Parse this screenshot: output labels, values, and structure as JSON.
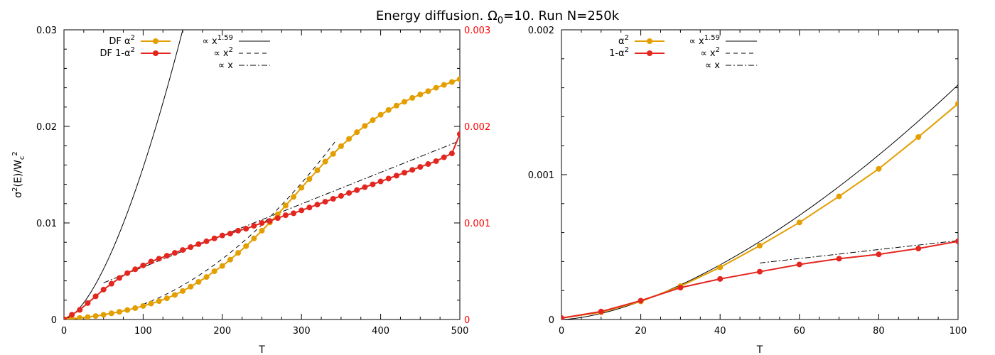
{
  "title_main": "Energy diffusion. Ω",
  "title_sub": "0",
  "title_rest": "=10. Run N=250k",
  "colors": {
    "alpha2": "#e39e00",
    "one_minus_alpha2": "#e3261f",
    "fit": "#000000",
    "right_axis": "#ff0000"
  },
  "chart_data": [
    {
      "type": "line",
      "xlabel": "T",
      "ylabel": "σ2(E)/Wc2",
      "ylabel_parts": {
        "a": "σ",
        "a_sup": "2",
        "b": "(E)/W",
        "b_sub": "c",
        "b_sup": "2"
      },
      "xlim": [
        0,
        500
      ],
      "ylim": [
        0,
        0.03
      ],
      "y2lim": [
        0,
        0.003
      ],
      "xticks": [
        "0",
        "100",
        "200",
        "300",
        "400",
        "500"
      ],
      "yticks": [
        "0",
        "0.01",
        "0.02",
        "0.03"
      ],
      "y2ticks": [
        "0",
        "0.001",
        "0.002",
        "0.003"
      ],
      "legend_position": "top-left",
      "series": [
        {
          "name": "DF α2",
          "name_parts": {
            "base": "DF α",
            "sup": "2"
          },
          "axis": "left",
          "x": [
            0,
            10,
            20,
            30,
            40,
            50,
            60,
            70,
            80,
            90,
            100,
            110,
            120,
            130,
            140,
            150,
            160,
            170,
            180,
            190,
            200,
            210,
            220,
            230,
            240,
            250,
            260,
            270,
            280,
            290,
            300,
            310,
            320,
            330,
            340,
            350,
            360,
            370,
            380,
            390,
            400,
            410,
            420,
            430,
            440,
            450,
            460,
            470,
            480,
            490,
            500
          ],
          "y": [
            5e-05,
            8e-05,
            0.00016,
            0.00025,
            0.00036,
            0.00049,
            0.00064,
            0.0008,
            0.00098,
            0.00118,
            0.0014,
            0.00165,
            0.0019,
            0.0022,
            0.00255,
            0.00295,
            0.0034,
            0.0039,
            0.0044,
            0.005,
            0.00555,
            0.0062,
            0.0069,
            0.0076,
            0.0084,
            0.0092,
            0.01005,
            0.0109,
            0.0118,
            0.0127,
            0.01365,
            0.01455,
            0.01545,
            0.01635,
            0.01715,
            0.01795,
            0.0187,
            0.0194,
            0.02005,
            0.02065,
            0.0212,
            0.0217,
            0.02215,
            0.02255,
            0.02295,
            0.0233,
            0.02365,
            0.024,
            0.0243,
            0.0246,
            0.0249
          ]
        },
        {
          "name": "DF 1-α2",
          "name_parts": {
            "base": "DF 1-α",
            "sup": "2"
          },
          "axis": "right",
          "x": [
            0,
            10,
            20,
            30,
            40,
            50,
            60,
            70,
            80,
            90,
            100,
            110,
            120,
            130,
            140,
            150,
            160,
            170,
            180,
            190,
            200,
            210,
            220,
            230,
            240,
            250,
            260,
            270,
            280,
            290,
            300,
            310,
            320,
            330,
            340,
            350,
            360,
            370,
            380,
            390,
            400,
            410,
            420,
            430,
            440,
            450,
            460,
            470,
            480,
            490,
            500
          ],
          "y": [
            0.0,
            5e-05,
            0.0001,
            0.00017,
            0.00024,
            0.00031,
            0.00037,
            0.00043,
            0.00048,
            0.00052,
            0.00056,
            0.0006,
            0.00063,
            0.00066,
            0.00069,
            0.00072,
            0.00075,
            0.00078,
            0.00081,
            0.00084,
            0.00087,
            0.00089,
            0.00092,
            0.00094,
            0.00097,
            0.001,
            0.00102,
            0.00105,
            0.00108,
            0.0011,
            0.00113,
            0.00116,
            0.00119,
            0.00122,
            0.00125,
            0.00128,
            0.00131,
            0.00134,
            0.00137,
            0.0014,
            0.00143,
            0.00146,
            0.00149,
            0.00152,
            0.00155,
            0.00158,
            0.00161,
            0.00164,
            0.00168,
            0.00172,
            0.00192
          ]
        }
      ],
      "fits": [
        {
          "name": "∝ x1.59",
          "name_parts": {
            "base": "∝ x",
            "sup": "1.59"
          },
          "style": "solid",
          "exponent": 1.59,
          "coef": 1.04e-05,
          "xrange": [
            0,
            195
          ],
          "axis": "left"
        },
        {
          "name": "∝ x2",
          "name_parts": {
            "base": "∝ x",
            "sup": "2"
          },
          "style": "dashed",
          "exponent": 2,
          "coef": 1.57e-07,
          "xrange": [
            100,
            345
          ],
          "axis": "left"
        },
        {
          "name": "∝ x",
          "name_parts": {
            "base": "∝ x",
            "sup": ""
          },
          "style": "dashdot",
          "points": [
            [
              50,
              0.00038
            ],
            [
              500,
              0.00185
            ]
          ],
          "axis": "right"
        }
      ]
    },
    {
      "type": "line",
      "xlabel": "T",
      "ylabel": "",
      "xlim": [
        0,
        100
      ],
      "ylim": [
        0,
        0.002
      ],
      "xticks": [
        "0",
        "20",
        "40",
        "60",
        "80",
        "100"
      ],
      "yticks": [
        "0",
        "0.001",
        "0.002"
      ],
      "legend_position": "top-left",
      "series": [
        {
          "name": "α2",
          "name_parts": {
            "base": "α",
            "sup": "2"
          },
          "x": [
            0,
            10,
            20,
            30,
            40,
            50,
            60,
            70,
            80,
            90,
            100
          ],
          "y": [
            1e-05,
            5e-05,
            0.000125,
            0.00023,
            0.00036,
            0.00051,
            0.00067,
            0.00085,
            0.00104,
            0.00126,
            0.00149
          ]
        },
        {
          "name": "1-α2",
          "name_parts": {
            "base": "1-α",
            "sup": "2"
          },
          "x": [
            0,
            10,
            20,
            30,
            40,
            50,
            60,
            70,
            80,
            90,
            100
          ],
          "y": [
            1e-05,
            5.5e-05,
            0.00013,
            0.00022,
            0.00028,
            0.00033,
            0.00038,
            0.00042,
            0.00045,
            0.00049,
            0.00054
          ]
        }
      ],
      "fits": [
        {
          "name": "∝ x1.59",
          "name_parts": {
            "base": "∝ x",
            "sup": "1.59"
          },
          "style": "solid",
          "exponent": 1.59,
          "coef": 1.07e-06,
          "xrange": [
            0,
            100
          ]
        },
        {
          "name": "∝ x2",
          "name_parts": {
            "base": "∝ x",
            "sup": "2"
          },
          "style": "dashed",
          "legend_only": true
        },
        {
          "name": "∝ x",
          "name_parts": {
            "base": "∝ x",
            "sup": ""
          },
          "style": "dashdot",
          "points": [
            [
              50,
              0.00039
            ],
            [
              100,
              0.000545
            ]
          ]
        }
      ]
    }
  ]
}
